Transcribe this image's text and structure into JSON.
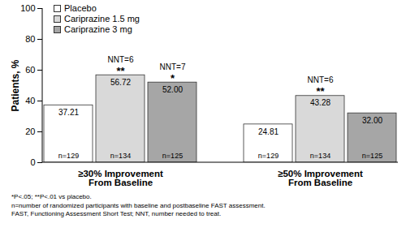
{
  "chart_data": {
    "type": "bar",
    "y_label": "Patients, %",
    "categories": [
      "≥30% Improvement\nFrom Baseline",
      "≥50% Improvement\nFrom Baseline"
    ],
    "ylim": [
      0,
      100
    ],
    "yticks": [
      0,
      20,
      40,
      60,
      80,
      100
    ],
    "grid": false,
    "legend": "upper left",
    "data_labels": true,
    "series": [
      {
        "name": "Placebo",
        "color": "#ffffff",
        "values": [
          37.21,
          24.81
        ],
        "value_labels": [
          "37.21",
          "24.81"
        ],
        "n_labels": [
          "n=129",
          "n=129"
        ],
        "nnt_labels": [
          null,
          null
        ],
        "significance": [
          null,
          null
        ]
      },
      {
        "name": "Cariprazine 1.5 mg",
        "color": "#d9d9d9",
        "values": [
          56.72,
          43.28
        ],
        "value_labels": [
          "56.72",
          "43.28"
        ],
        "n_labels": [
          "n=134",
          "n=134"
        ],
        "nnt_labels": [
          "NNT=6",
          "NNT=6"
        ],
        "significance": [
          "**",
          "**"
        ]
      },
      {
        "name": "Cariprazine 3 mg",
        "color": "#a6a6a6",
        "values": [
          52,
          32
        ],
        "value_labels": [
          "52.00",
          "32.00"
        ],
        "n_labels": [
          "n=125",
          "n=125"
        ],
        "nnt_labels": [
          "NNT=7",
          null
        ],
        "significance": [
          "*",
          null
        ]
      }
    ],
    "notes": [
      "*P<.05; **P<.01 vs placebo.",
      "n=number of randomized participants with baseline and postbaseline FAST assessment.",
      "FAST, Functioning Assessment Short Test; NNT, number needed to treat."
    ]
  }
}
